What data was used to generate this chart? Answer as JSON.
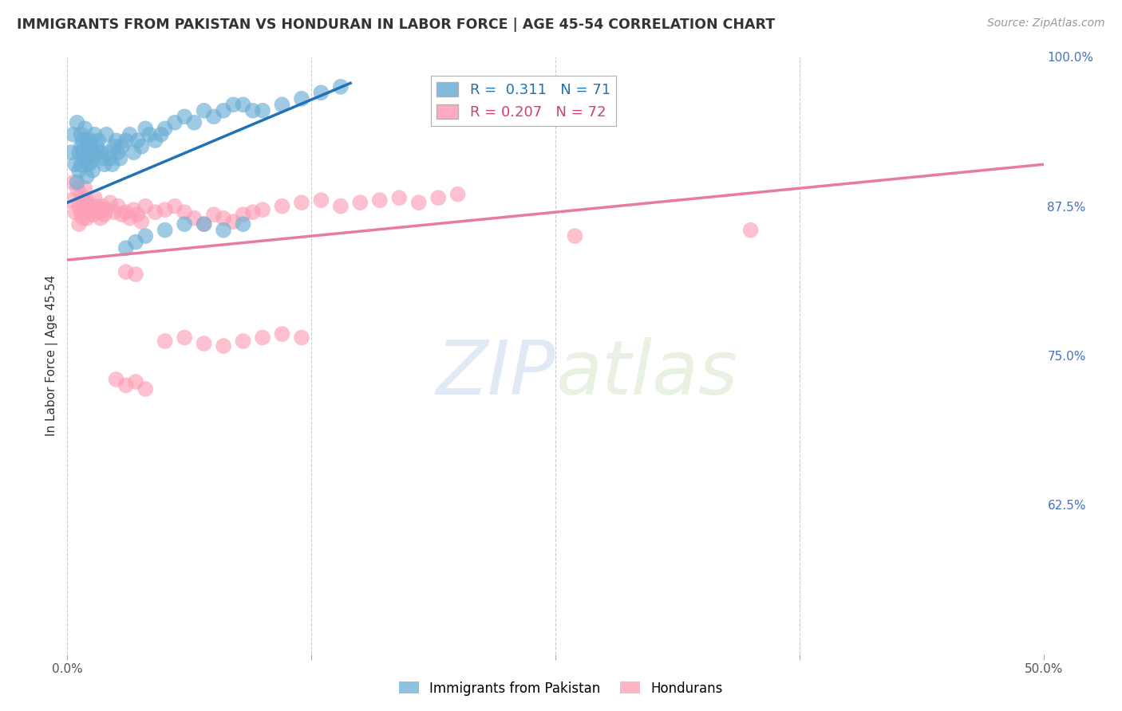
{
  "title": "IMMIGRANTS FROM PAKISTAN VS HONDURAN IN LABOR FORCE | AGE 45-54 CORRELATION CHART",
  "source": "Source: ZipAtlas.com",
  "ylabel": "In Labor Force | Age 45-54",
  "xlim": [
    0.0,
    0.5
  ],
  "ylim": [
    0.5,
    1.0
  ],
  "ytick_vals": [
    0.625,
    0.75,
    0.875,
    1.0
  ],
  "ytick_labels": [
    "62.5%",
    "75.0%",
    "87.5%",
    "100.0%"
  ],
  "xtick_vals": [
    0.0,
    0.125,
    0.25,
    0.375,
    0.5
  ],
  "xtick_labels": [
    "0.0%",
    "",
    "",
    "",
    "50.0%"
  ],
  "legend_blue_label": "Immigrants from Pakistan",
  "legend_pink_label": "Hondurans",
  "R_blue": 0.311,
  "N_blue": 71,
  "R_pink": 0.207,
  "N_pink": 72,
  "blue_color": "#6BAED6",
  "pink_color": "#FC9EB5",
  "blue_line_color": "#2171B5",
  "pink_line_color": "#E87CA0",
  "watermark_zip": "ZIP",
  "watermark_atlas": "atlas",
  "background_color": "#FFFFFF",
  "blue_x": [
    0.002,
    0.003,
    0.004,
    0.005,
    0.005,
    0.006,
    0.006,
    0.007,
    0.007,
    0.007,
    0.008,
    0.008,
    0.009,
    0.009,
    0.01,
    0.01,
    0.01,
    0.011,
    0.011,
    0.012,
    0.012,
    0.013,
    0.013,
    0.014,
    0.014,
    0.015,
    0.016,
    0.017,
    0.018,
    0.019,
    0.02,
    0.021,
    0.022,
    0.023,
    0.024,
    0.025,
    0.026,
    0.027,
    0.028,
    0.03,
    0.032,
    0.034,
    0.036,
    0.038,
    0.04,
    0.042,
    0.045,
    0.048,
    0.05,
    0.055,
    0.06,
    0.065,
    0.07,
    0.075,
    0.08,
    0.085,
    0.09,
    0.095,
    0.1,
    0.11,
    0.12,
    0.13,
    0.14,
    0.03,
    0.035,
    0.04,
    0.05,
    0.06,
    0.07,
    0.08,
    0.09
  ],
  "blue_y": [
    0.92,
    0.935,
    0.91,
    0.895,
    0.945,
    0.92,
    0.905,
    0.935,
    0.925,
    0.91,
    0.93,
    0.92,
    0.94,
    0.915,
    0.93,
    0.915,
    0.9,
    0.925,
    0.91,
    0.93,
    0.912,
    0.92,
    0.905,
    0.935,
    0.918,
    0.925,
    0.93,
    0.92,
    0.915,
    0.91,
    0.935,
    0.92,
    0.915,
    0.91,
    0.925,
    0.93,
    0.92,
    0.915,
    0.925,
    0.93,
    0.935,
    0.92,
    0.93,
    0.925,
    0.94,
    0.935,
    0.93,
    0.935,
    0.94,
    0.945,
    0.95,
    0.945,
    0.955,
    0.95,
    0.955,
    0.96,
    0.96,
    0.955,
    0.955,
    0.96,
    0.965,
    0.97,
    0.975,
    0.84,
    0.845,
    0.85,
    0.855,
    0.86,
    0.86,
    0.855,
    0.86
  ],
  "pink_x": [
    0.002,
    0.003,
    0.004,
    0.005,
    0.006,
    0.006,
    0.007,
    0.007,
    0.008,
    0.008,
    0.009,
    0.009,
    0.01,
    0.01,
    0.011,
    0.012,
    0.013,
    0.014,
    0.015,
    0.016,
    0.017,
    0.018,
    0.019,
    0.02,
    0.022,
    0.024,
    0.026,
    0.028,
    0.03,
    0.032,
    0.034,
    0.036,
    0.038,
    0.04,
    0.045,
    0.05,
    0.055,
    0.06,
    0.065,
    0.07,
    0.075,
    0.08,
    0.085,
    0.09,
    0.095,
    0.1,
    0.11,
    0.12,
    0.13,
    0.14,
    0.15,
    0.16,
    0.17,
    0.18,
    0.19,
    0.2,
    0.03,
    0.035,
    0.05,
    0.06,
    0.07,
    0.08,
    0.09,
    0.1,
    0.11,
    0.12,
    0.025,
    0.03,
    0.035,
    0.04,
    0.26,
    0.35
  ],
  "pink_y": [
    0.88,
    0.895,
    0.87,
    0.89,
    0.875,
    0.86,
    0.885,
    0.87,
    0.88,
    0.865,
    0.89,
    0.872,
    0.88,
    0.865,
    0.875,
    0.87,
    0.868,
    0.882,
    0.875,
    0.87,
    0.865,
    0.875,
    0.868,
    0.872,
    0.878,
    0.87,
    0.875,
    0.868,
    0.87,
    0.865,
    0.872,
    0.868,
    0.862,
    0.875,
    0.87,
    0.872,
    0.875,
    0.87,
    0.865,
    0.86,
    0.868,
    0.865,
    0.862,
    0.868,
    0.87,
    0.872,
    0.875,
    0.878,
    0.88,
    0.875,
    0.878,
    0.88,
    0.882,
    0.878,
    0.882,
    0.885,
    0.82,
    0.818,
    0.762,
    0.765,
    0.76,
    0.758,
    0.762,
    0.765,
    0.768,
    0.765,
    0.73,
    0.725,
    0.728,
    0.722,
    0.85,
    0.855
  ],
  "line_blue_x0": 0.0,
  "line_blue_x1": 0.145,
  "line_blue_y0": 0.878,
  "line_blue_y1": 0.978,
  "line_pink_x0": 0.0,
  "line_pink_x1": 0.5,
  "line_pink_y0": 0.83,
  "line_pink_y1": 0.91
}
